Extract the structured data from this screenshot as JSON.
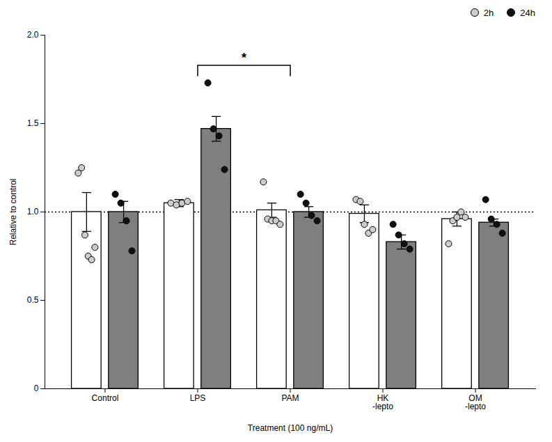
{
  "chart_data": {
    "type": "bar",
    "categories": [
      "Control",
      "LPS",
      "PAM",
      "HK\n-lepto",
      "OM\n-lepto"
    ],
    "series": [
      {
        "name": "2h",
        "color": "#ffffff",
        "dot_color": "#cccccc",
        "values": [
          1.0,
          1.05,
          1.01,
          0.99,
          0.96
        ],
        "errors": [
          0.11,
          0.02,
          0.04,
          0.05,
          0.04
        ],
        "dots": [
          [
            1.22,
            1.25,
            0.87,
            0.75,
            0.73,
            0.8
          ],
          [
            1.05,
            1.04,
            1.05,
            1.06
          ],
          [
            1.17,
            0.96,
            0.95,
            0.95,
            0.93
          ],
          [
            1.07,
            1.06,
            0.93,
            0.88,
            0.9
          ],
          [
            0.82,
            0.95,
            0.97,
            1.0,
            0.97
          ]
        ]
      },
      {
        "name": "24h",
        "color": "#7f7f7f",
        "dot_color": "#111111",
        "values": [
          1.0,
          1.47,
          1.0,
          0.83,
          0.94
        ],
        "errors": [
          0.06,
          0.07,
          0.03,
          0.04,
          0.02
        ],
        "dots": [
          [
            1.1,
            1.05,
            0.95,
            0.78
          ],
          [
            1.73,
            1.47,
            1.43,
            1.24
          ],
          [
            1.1,
            1.05,
            0.98,
            0.95
          ],
          [
            0.93,
            0.87,
            0.82,
            0.79
          ],
          [
            1.07,
            0.96,
            0.93,
            0.88
          ]
        ]
      }
    ],
    "xlabel": "Treatment (100 ng/mL)",
    "ylabel": "Relative to control",
    "ylim": [
      0,
      2.0
    ],
    "yticks": [
      0,
      0.5,
      {
        "value": 1.0,
        "label": "1.0"
      },
      1.5,
      {
        "value": 2.0,
        "label": "2.0"
      }
    ],
    "reference_line": 1.0,
    "annotations": [
      {
        "text": "*",
        "from": "LPS",
        "to": "PAM",
        "y": 1.83
      }
    ],
    "grid": false,
    "legend": "upper right"
  }
}
